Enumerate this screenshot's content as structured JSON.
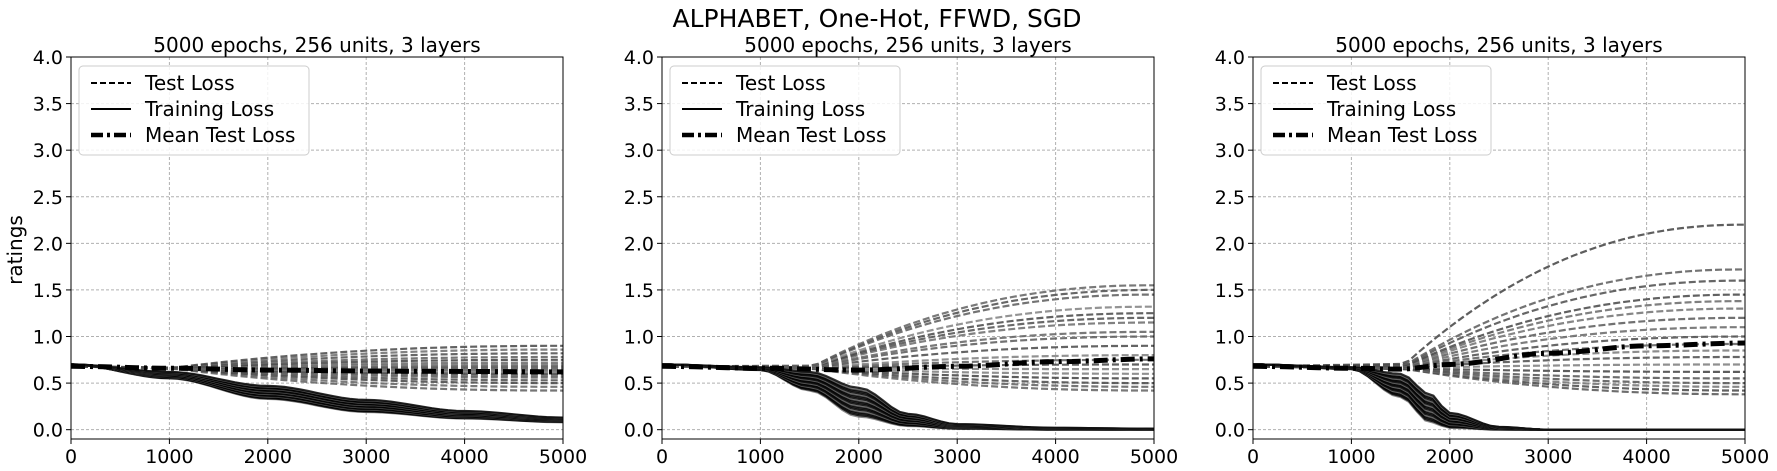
{
  "suptitle": "ALPHABET, One-Hot, FFWD, SGD",
  "ylabel": "ratings",
  "legend": {
    "position": "upper left",
    "entries": [
      {
        "label": "Test Loss",
        "style": "dashed"
      },
      {
        "label": "Training Loss",
        "style": "solid"
      },
      {
        "label": "Mean Test Loss",
        "style": "dashdot-bold"
      }
    ]
  },
  "chart_data": [
    {
      "type": "line",
      "title": "5000 epochs, 256 units, 3 layers",
      "xlabel": "",
      "ylabel": "ratings",
      "xlim": [
        0,
        5000
      ],
      "ylim": [
        -0.1,
        4.0
      ],
      "grid": true,
      "xticks": [
        "0",
        "1000",
        "2000",
        "3000",
        "4000",
        "5000"
      ],
      "yticks": [
        "0.0",
        "0.5",
        "1.0",
        "1.5",
        "2.0",
        "2.5",
        "3.0",
        "3.5",
        "4.0"
      ],
      "series": [
        {
          "name": "Test Loss",
          "style": "dashed",
          "x": [
            0,
            1000,
            2000,
            3000,
            4000,
            5000
          ],
          "y_final_values": [
            0.42,
            0.46,
            0.5,
            0.53,
            0.56,
            0.58,
            0.6,
            0.62,
            0.64,
            0.66,
            0.68,
            0.7,
            0.72,
            0.75,
            0.78,
            0.82,
            0.86,
            0.9
          ]
        },
        {
          "name": "Training Loss",
          "style": "solid",
          "x": [
            0,
            1000,
            2000,
            3000,
            4000,
            5000
          ],
          "y_mean": [
            0.7,
            0.6,
            0.42,
            0.27,
            0.17,
            0.11
          ],
          "y_lower": [
            0.7,
            0.55,
            0.33,
            0.19,
            0.12,
            0.08
          ],
          "y_upper": [
            0.7,
            0.62,
            0.47,
            0.32,
            0.2,
            0.13
          ]
        },
        {
          "name": "Mean Test Loss",
          "style": "dashdot-bold",
          "x": [
            0,
            1000,
            2000,
            3000,
            4000,
            5000
          ],
          "y": [
            0.68,
            0.66,
            0.64,
            0.63,
            0.625,
            0.62
          ]
        }
      ]
    },
    {
      "type": "line",
      "title": "5000 epochs, 256 units, 3 layers",
      "xlabel": "",
      "ylabel": "",
      "xlim": [
        0,
        5000
      ],
      "ylim": [
        -0.1,
        4.0
      ],
      "grid": true,
      "xticks": [
        "0",
        "1000",
        "2000",
        "3000",
        "4000",
        "5000"
      ],
      "yticks": [
        "0.0",
        "0.5",
        "1.0",
        "1.5",
        "2.0",
        "2.5",
        "3.0",
        "3.5",
        "4.0"
      ],
      "series": [
        {
          "name": "Test Loss",
          "style": "dashed",
          "x": [
            0,
            1000,
            2000,
            3000,
            4000,
            5000
          ],
          "y_final_values": [
            0.42,
            0.46,
            0.5,
            0.55,
            0.6,
            0.65,
            0.7,
            0.75,
            0.8,
            0.9,
            1.0,
            1.05,
            1.15,
            1.2,
            1.25,
            1.32,
            1.45,
            1.5,
            1.55
          ]
        },
        {
          "name": "Training Loss",
          "style": "solid",
          "x": [
            0,
            1000,
            1500,
            2000,
            2500,
            3000,
            4000,
            5000
          ],
          "y_mean": [
            0.7,
            0.66,
            0.55,
            0.3,
            0.09,
            0.03,
            0.01,
            0.0
          ],
          "y_lower": [
            0.7,
            0.64,
            0.42,
            0.14,
            0.04,
            0.01,
            0.0,
            0.0
          ],
          "y_upper": [
            0.7,
            0.67,
            0.62,
            0.45,
            0.17,
            0.06,
            0.02,
            0.01
          ]
        },
        {
          "name": "Mean Test Loss",
          "style": "dashdot-bold",
          "x": [
            0,
            1000,
            2000,
            3000,
            4000,
            5000
          ],
          "y": [
            0.68,
            0.66,
            0.64,
            0.68,
            0.73,
            0.76
          ]
        }
      ]
    },
    {
      "type": "line",
      "title": "5000 epochs, 256 units, 3 layers",
      "xlabel": "",
      "ylabel": "",
      "xlim": [
        0,
        5000
      ],
      "ylim": [
        -0.1,
        4.0
      ],
      "grid": true,
      "xticks": [
        "0",
        "1000",
        "2000",
        "3000",
        "4000",
        "5000"
      ],
      "yticks": [
        "0.0",
        "0.5",
        "1.0",
        "1.5",
        "2.0",
        "2.5",
        "3.0",
        "3.5",
        "4.0"
      ],
      "series": [
        {
          "name": "Test Loss",
          "style": "dashed",
          "x": [
            0,
            1000,
            2000,
            3000,
            4000,
            5000
          ],
          "y_final_values": [
            0.38,
            0.42,
            0.46,
            0.5,
            0.55,
            0.62,
            0.7,
            0.78,
            0.85,
            0.92,
            1.0,
            1.1,
            1.2,
            1.3,
            1.38,
            1.45,
            1.6,
            1.72,
            2.2
          ]
        },
        {
          "name": "Training Loss",
          "style": "solid",
          "x": [
            0,
            1000,
            1500,
            1800,
            2000,
            2500,
            3000,
            5000
          ],
          "y_mean": [
            0.7,
            0.66,
            0.5,
            0.2,
            0.07,
            0.01,
            0.0,
            0.0
          ],
          "y_lower": [
            0.7,
            0.65,
            0.35,
            0.08,
            0.02,
            0.0,
            0.0,
            0.0
          ],
          "y_upper": [
            0.7,
            0.67,
            0.6,
            0.38,
            0.18,
            0.03,
            0.0,
            0.0
          ]
        },
        {
          "name": "Mean Test Loss",
          "style": "dashdot-bold",
          "x": [
            0,
            1000,
            1500,
            2000,
            3000,
            4000,
            5000
          ],
          "y": [
            0.68,
            0.66,
            0.65,
            0.7,
            0.82,
            0.9,
            0.93
          ]
        }
      ]
    }
  ]
}
